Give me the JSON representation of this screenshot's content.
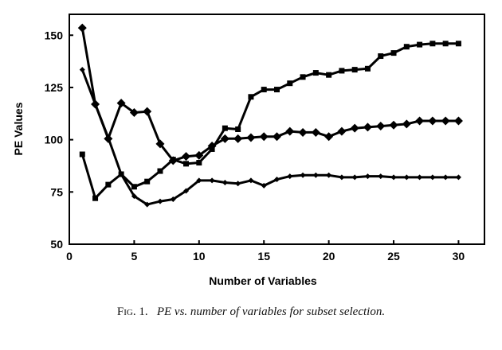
{
  "caption": {
    "label": "Fig. 1.",
    "text": "PE vs. number of variables for subset selection."
  },
  "chart_data": {
    "type": "line",
    "title": "",
    "xlabel": "Number of Variables",
    "ylabel": "PE Values",
    "xlim": [
      0,
      32
    ],
    "ylim": [
      50,
      160
    ],
    "xticks": [
      0,
      5,
      10,
      15,
      20,
      25,
      30
    ],
    "yticks": [
      50,
      75,
      100,
      125,
      150
    ],
    "grid": false,
    "legend": "none",
    "line_color": "#000000",
    "series": [
      {
        "marker": "diamond-large",
        "x": [
          1,
          2,
          3,
          4,
          5,
          6,
          7,
          8,
          9,
          10,
          11,
          12,
          13,
          14,
          15,
          16,
          17,
          18,
          19,
          20,
          21,
          22,
          23,
          24,
          25,
          26,
          27,
          28,
          29,
          30
        ],
        "values": [
          153.5,
          117,
          100.5,
          117.5,
          113,
          113.5,
          98,
          90,
          92,
          92.5,
          97,
          100.5,
          100.5,
          101,
          101.5,
          101.5,
          104,
          103.5,
          103.5,
          101.5,
          104,
          105.5,
          106,
          106.5,
          107,
          107.5,
          109,
          109,
          109,
          109
        ]
      },
      {
        "marker": "square",
        "x": [
          1,
          2,
          3,
          4,
          5,
          6,
          7,
          8,
          9,
          10,
          11,
          12,
          13,
          14,
          15,
          16,
          17,
          18,
          19,
          20,
          21,
          22,
          23,
          24,
          25,
          26,
          27,
          28,
          29,
          30
        ],
        "values": [
          93,
          72,
          78.5,
          83.5,
          77.5,
          80,
          85,
          90.5,
          88.5,
          89,
          95.5,
          105.5,
          105,
          120.5,
          124,
          124,
          127,
          130,
          132,
          131,
          133,
          133.5,
          134,
          140,
          141.5,
          144.5,
          145.5,
          146,
          146,
          146
        ]
      },
      {
        "marker": "diamond-small",
        "x": [
          1,
          2,
          3,
          4,
          5,
          6,
          7,
          8,
          9,
          10,
          11,
          12,
          13,
          14,
          15,
          16,
          17,
          18,
          19,
          20,
          21,
          22,
          23,
          24,
          25,
          26,
          27,
          28,
          29,
          30
        ],
        "values": [
          133.5,
          117,
          101,
          83.5,
          73,
          69,
          70.5,
          71.5,
          75.5,
          80.5,
          80.5,
          79.5,
          79,
          80.5,
          78,
          81,
          82.5,
          83,
          83,
          83,
          82,
          82,
          82.5,
          82.5,
          82,
          82,
          82,
          82,
          82,
          82
        ]
      }
    ]
  }
}
